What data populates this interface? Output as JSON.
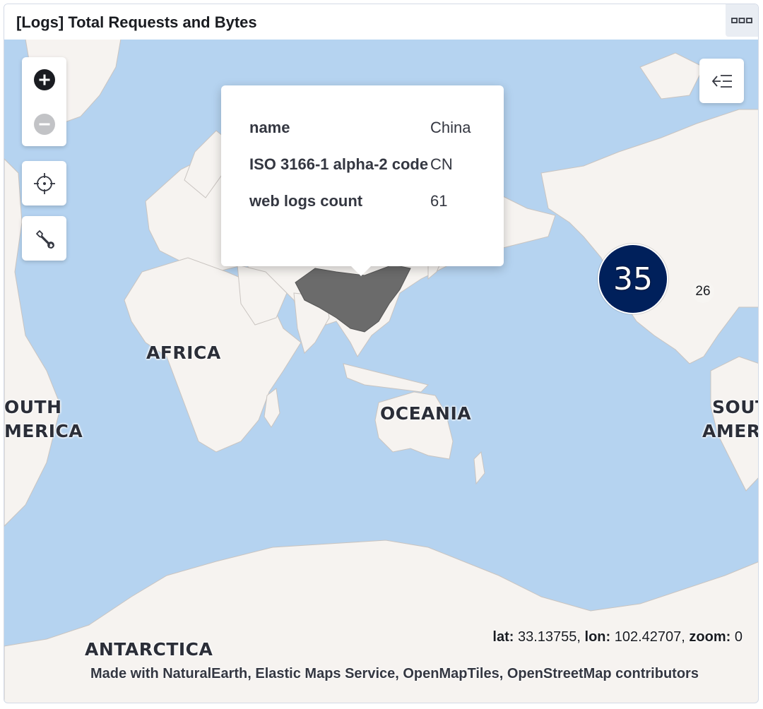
{
  "panel": {
    "title": "[Logs] Total Requests and Bytes",
    "options_icon": "ellipsis-icon"
  },
  "map_controls": {
    "zoom_in_icon": "plus-circle-icon",
    "zoom_out_icon": "minus-circle-icon",
    "locate_icon": "crosshair-icon",
    "tools_icon": "wrench-icon",
    "layer_toggle_icon": "menu-left-icon"
  },
  "tooltip": {
    "rows": [
      {
        "key": "name",
        "value": "China"
      },
      {
        "key": "ISO 3166-1 alpha-2 code",
        "value": "CN"
      },
      {
        "key": "web logs count",
        "value": "61"
      }
    ]
  },
  "clusters": {
    "large": "35",
    "small": "26"
  },
  "continents": {
    "africa": "AFRICA",
    "south_america_left_line1": "OUTH",
    "south_america_left_line2": "MERICA",
    "oceania": "OCEANIA",
    "south_america_right_line1": "SOUT",
    "south_america_right_line2": "AMERI",
    "antarctica": "ANTARCTICA"
  },
  "status": {
    "lat_label": "lat:",
    "lat_value": "33.13755",
    "lon_label": "lon:",
    "lon_value": "102.42707",
    "zoom_label": "zoom:",
    "zoom_value": "0"
  },
  "attribution": "Made with NaturalEarth, Elastic Maps Service, OpenMapTiles, OpenStreetMap contributors",
  "colors": {
    "water": "#b5d3f0",
    "land": "#f6f3f0",
    "highlight_country": "#6b6b6b",
    "cluster_fill": "#00205b"
  }
}
